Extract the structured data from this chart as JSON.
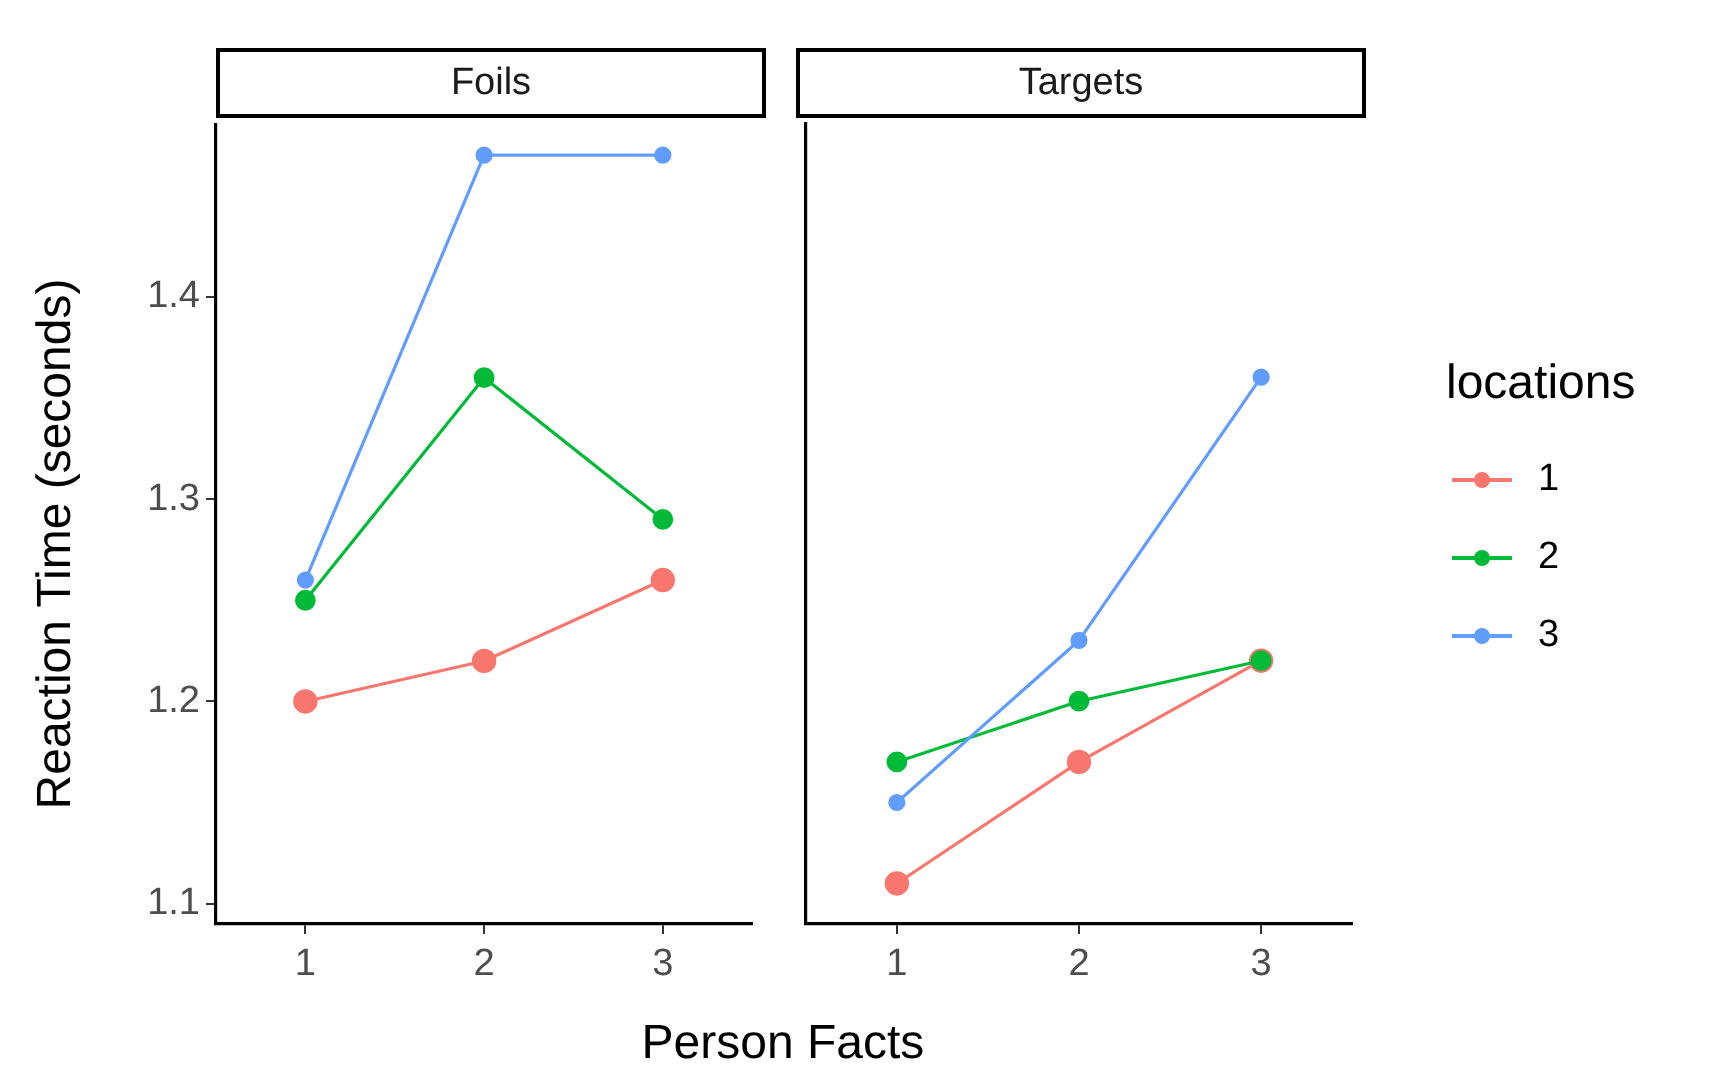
{
  "chart_data": [
    {
      "type": "line",
      "title": "Foils",
      "xlabel": "Person Facts",
      "ylabel": "Reaction Time (seconds)",
      "categories": [
        "1",
        "2",
        "3"
      ],
      "ylim": [
        1.09,
        1.485
      ],
      "yticks": [
        1.1,
        1.2,
        1.3,
        1.4
      ],
      "grid": false,
      "marker": "circle",
      "line_style": "solid",
      "legend": "right",
      "series": [
        {
          "name": "1",
          "color": "#f8766d",
          "values": [
            1.2,
            1.22,
            1.26
          ]
        },
        {
          "name": "2",
          "color": "#00ba38",
          "values": [
            1.25,
            1.36,
            1.29
          ]
        },
        {
          "name": "3",
          "color": "#619cff",
          "values": [
            1.26,
            1.47,
            1.47
          ]
        }
      ]
    },
    {
      "type": "line",
      "title": "Targets",
      "legend_title": "locations",
      "categories": [
        "1",
        "2",
        "3"
      ],
      "ylim": [
        1.09,
        1.485
      ],
      "yticks": [
        1.1,
        1.2,
        1.3,
        1.4
      ],
      "tick_labels": "x",
      "grid": false,
      "marker": "circle",
      "line_style": "solid",
      "legend": "right",
      "series": [
        {
          "name": "1",
          "color": "#f8766d",
          "values": [
            1.11,
            1.17,
            1.22
          ]
        },
        {
          "name": "2",
          "color": "#00ba38",
          "values": [
            1.17,
            1.2,
            1.22
          ]
        },
        {
          "name": "3",
          "color": "#619cff",
          "values": [
            1.15,
            1.23,
            1.36
          ]
        }
      ]
    }
  ]
}
